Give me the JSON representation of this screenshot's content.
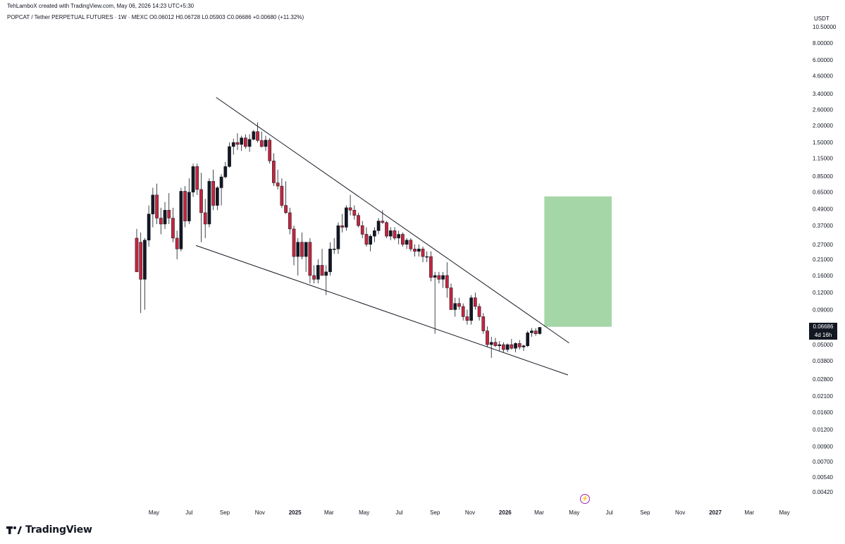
{
  "header": {
    "credit": "TehLamboX created with TradingView.com, May 06, 2026 14:23 UTC+5:30",
    "legend": "POPCAT / Tether PERPETUAL FUTURES · 1W · MEXC  O0.06012  H0.06728  L0.05903  C0.06686  +0.00680 (+11.32%)",
    "currency": "USDT"
  },
  "price_tag": {
    "price": "0.06686",
    "countdown": "4d 16h"
  },
  "brand": {
    "name": "TradingView",
    "logo_icon": "tradingview-logo-icon"
  },
  "event_icon": "lightning-icon",
  "colors": {
    "up": "#131722",
    "down": "#c2263e",
    "line": "#131722",
    "target_box": "#a5d6a7",
    "axis_text": "#131722"
  },
  "chart_data": {
    "type": "candlestick",
    "title": "POPCAT / Tether PERPETUAL FUTURES · 1W · MEXC",
    "y_scale": "log",
    "ylim": [
      0.0042,
      10.5
    ],
    "y_ticks": [
      "10.50000",
      "8.00000",
      "6.00000",
      "4.60000",
      "3.40000",
      "2.60000",
      "2.00000",
      "1.50000",
      "1.15000",
      "0.85000",
      "0.65000",
      "0.49000",
      "0.37000",
      "0.27000",
      "0.21000",
      "0.16000",
      "0.12000",
      "0.09000",
      "0.05000",
      "0.03800",
      "0.02800",
      "0.02100",
      "0.01600",
      "0.01200",
      "0.00900",
      "0.00700",
      "0.00540",
      "0.00420"
    ],
    "x_labels": [
      {
        "label": "May",
        "date": "2024-05-01",
        "bold": false
      },
      {
        "label": "Jul",
        "date": "2024-07-01",
        "bold": false
      },
      {
        "label": "Sep",
        "date": "2024-09-01",
        "bold": false
      },
      {
        "label": "Nov",
        "date": "2024-11-01",
        "bold": false
      },
      {
        "label": "2025",
        "date": "2025-01-01",
        "bold": true
      },
      {
        "label": "Mar",
        "date": "2025-03-01",
        "bold": false
      },
      {
        "label": "May",
        "date": "2025-05-01",
        "bold": false
      },
      {
        "label": "Jul",
        "date": "2025-07-01",
        "bold": false
      },
      {
        "label": "Sep",
        "date": "2025-09-01",
        "bold": false
      },
      {
        "label": "Nov",
        "date": "2025-11-01",
        "bold": false
      },
      {
        "label": "2026",
        "date": "2026-01-01",
        "bold": true
      },
      {
        "label": "Mar",
        "date": "2026-03-01",
        "bold": false
      },
      {
        "label": "May",
        "date": "2026-05-01",
        "bold": false
      },
      {
        "label": "Jul",
        "date": "2026-07-01",
        "bold": false
      },
      {
        "label": "Sep",
        "date": "2026-09-01",
        "bold": false
      },
      {
        "label": "Nov",
        "date": "2026-11-01",
        "bold": false
      },
      {
        "label": "2027",
        "date": "2027-01-01",
        "bold": true
      },
      {
        "label": "Mar",
        "date": "2027-03-01",
        "bold": false
      },
      {
        "label": "May",
        "date": "2027-05-01",
        "bold": false
      }
    ],
    "xlim": [
      "2024-03-21",
      "2027-06-03"
    ],
    "candles": [
      {
        "date": "2024-04-01",
        "o": 0.3,
        "h": 0.35,
        "l": 0.17,
        "c": 0.17
      },
      {
        "date": "2024-04-08",
        "o": 0.28,
        "h": 0.33,
        "l": 0.085,
        "c": 0.15
      },
      {
        "date": "2024-04-15",
        "o": 0.15,
        "h": 0.3,
        "l": 0.09,
        "c": 0.29
      },
      {
        "date": "2024-04-22",
        "o": 0.29,
        "h": 0.52,
        "l": 0.26,
        "c": 0.45
      },
      {
        "date": "2024-04-29",
        "o": 0.45,
        "h": 0.7,
        "l": 0.36,
        "c": 0.62
      },
      {
        "date": "2024-05-06",
        "o": 0.62,
        "h": 0.75,
        "l": 0.38,
        "c": 0.42
      },
      {
        "date": "2024-05-13",
        "o": 0.42,
        "h": 0.5,
        "l": 0.32,
        "c": 0.38
      },
      {
        "date": "2024-05-20",
        "o": 0.38,
        "h": 0.55,
        "l": 0.35,
        "c": 0.48
      },
      {
        "date": "2024-05-27",
        "o": 0.48,
        "h": 0.64,
        "l": 0.38,
        "c": 0.42
      },
      {
        "date": "2024-06-03",
        "o": 0.42,
        "h": 0.5,
        "l": 0.28,
        "c": 0.3
      },
      {
        "date": "2024-06-10",
        "o": 0.3,
        "h": 0.34,
        "l": 0.21,
        "c": 0.25
      },
      {
        "date": "2024-06-17",
        "o": 0.25,
        "h": 0.7,
        "l": 0.24,
        "c": 0.66
      },
      {
        "date": "2024-06-24",
        "o": 0.66,
        "h": 0.72,
        "l": 0.36,
        "c": 0.4
      },
      {
        "date": "2024-07-01",
        "o": 0.4,
        "h": 0.82,
        "l": 0.38,
        "c": 0.65
      },
      {
        "date": "2024-07-08",
        "o": 0.65,
        "h": 1.05,
        "l": 0.6,
        "c": 1.0
      },
      {
        "date": "2024-07-15",
        "o": 1.0,
        "h": 1.05,
        "l": 0.62,
        "c": 0.68
      },
      {
        "date": "2024-07-22",
        "o": 0.68,
        "h": 0.9,
        "l": 0.28,
        "c": 0.46
      },
      {
        "date": "2024-07-29",
        "o": 0.46,
        "h": 0.58,
        "l": 0.3,
        "c": 0.38
      },
      {
        "date": "2024-08-05",
        "o": 0.38,
        "h": 0.82,
        "l": 0.36,
        "c": 0.78
      },
      {
        "date": "2024-08-12",
        "o": 0.78,
        "h": 0.95,
        "l": 0.48,
        "c": 0.52
      },
      {
        "date": "2024-08-19",
        "o": 0.52,
        "h": 0.72,
        "l": 0.48,
        "c": 0.7
      },
      {
        "date": "2024-08-26",
        "o": 0.7,
        "h": 0.88,
        "l": 0.52,
        "c": 0.84
      },
      {
        "date": "2024-09-02",
        "o": 0.84,
        "h": 1.08,
        "l": 0.82,
        "c": 1.0
      },
      {
        "date": "2024-09-09",
        "o": 1.0,
        "h": 1.5,
        "l": 0.98,
        "c": 1.4
      },
      {
        "date": "2024-09-16",
        "o": 1.4,
        "h": 1.6,
        "l": 1.22,
        "c": 1.5
      },
      {
        "date": "2024-09-23",
        "o": 1.5,
        "h": 1.75,
        "l": 1.32,
        "c": 1.45
      },
      {
        "date": "2024-09-30",
        "o": 1.45,
        "h": 1.68,
        "l": 1.3,
        "c": 1.62
      },
      {
        "date": "2024-10-07",
        "o": 1.62,
        "h": 1.72,
        "l": 1.35,
        "c": 1.4
      },
      {
        "date": "2024-10-14",
        "o": 1.4,
        "h": 1.72,
        "l": 1.28,
        "c": 1.58
      },
      {
        "date": "2024-10-21",
        "o": 1.58,
        "h": 1.85,
        "l": 1.55,
        "c": 1.8
      },
      {
        "date": "2024-10-28",
        "o": 1.8,
        "h": 2.1,
        "l": 1.5,
        "c": 1.55
      },
      {
        "date": "2024-11-04",
        "o": 1.55,
        "h": 1.8,
        "l": 1.38,
        "c": 1.4
      },
      {
        "date": "2024-11-11",
        "o": 1.4,
        "h": 1.68,
        "l": 1.3,
        "c": 1.56
      },
      {
        "date": "2024-11-18",
        "o": 1.56,
        "h": 1.62,
        "l": 1.05,
        "c": 1.1
      },
      {
        "date": "2024-11-25",
        "o": 1.1,
        "h": 1.25,
        "l": 0.72,
        "c": 0.76
      },
      {
        "date": "2024-12-02",
        "o": 0.76,
        "h": 0.95,
        "l": 0.68,
        "c": 0.72
      },
      {
        "date": "2024-12-09",
        "o": 0.72,
        "h": 0.82,
        "l": 0.5,
        "c": 0.52
      },
      {
        "date": "2024-12-16",
        "o": 0.52,
        "h": 0.78,
        "l": 0.45,
        "c": 0.46
      },
      {
        "date": "2024-12-23",
        "o": 0.46,
        "h": 0.5,
        "l": 0.32,
        "c": 0.35
      },
      {
        "date": "2024-12-30",
        "o": 0.35,
        "h": 0.37,
        "l": 0.19,
        "c": 0.22
      },
      {
        "date": "2025-01-06",
        "o": 0.22,
        "h": 0.3,
        "l": 0.16,
        "c": 0.28
      },
      {
        "date": "2025-01-13",
        "o": 0.28,
        "h": 0.33,
        "l": 0.21,
        "c": 0.22
      },
      {
        "date": "2025-01-20",
        "o": 0.22,
        "h": 0.28,
        "l": 0.17,
        "c": 0.28
      },
      {
        "date": "2025-01-27",
        "o": 0.28,
        "h": 0.3,
        "l": 0.14,
        "c": 0.16
      },
      {
        "date": "2025-02-03",
        "o": 0.16,
        "h": 0.19,
        "l": 0.14,
        "c": 0.15
      },
      {
        "date": "2025-02-10",
        "o": 0.15,
        "h": 0.21,
        "l": 0.14,
        "c": 0.19
      },
      {
        "date": "2025-02-17",
        "o": 0.19,
        "h": 0.25,
        "l": 0.16,
        "c": 0.16
      },
      {
        "date": "2025-02-24",
        "o": 0.16,
        "h": 0.19,
        "l": 0.115,
        "c": 0.17
      },
      {
        "date": "2025-03-03",
        "o": 0.17,
        "h": 0.28,
        "l": 0.16,
        "c": 0.25
      },
      {
        "date": "2025-03-10",
        "o": 0.25,
        "h": 0.3,
        "l": 0.23,
        "c": 0.25
      },
      {
        "date": "2025-03-17",
        "o": 0.25,
        "h": 0.39,
        "l": 0.23,
        "c": 0.37
      },
      {
        "date": "2025-03-24",
        "o": 0.37,
        "h": 0.45,
        "l": 0.33,
        "c": 0.36
      },
      {
        "date": "2025-03-31",
        "o": 0.36,
        "h": 0.52,
        "l": 0.34,
        "c": 0.5
      },
      {
        "date": "2025-04-07",
        "o": 0.5,
        "h": 0.62,
        "l": 0.44,
        "c": 0.48
      },
      {
        "date": "2025-04-14",
        "o": 0.48,
        "h": 0.52,
        "l": 0.41,
        "c": 0.44
      },
      {
        "date": "2025-04-21",
        "o": 0.44,
        "h": 0.46,
        "l": 0.36,
        "c": 0.37
      },
      {
        "date": "2025-04-28",
        "o": 0.37,
        "h": 0.4,
        "l": 0.3,
        "c": 0.32
      },
      {
        "date": "2025-05-05",
        "o": 0.32,
        "h": 0.36,
        "l": 0.26,
        "c": 0.27
      },
      {
        "date": "2025-05-12",
        "o": 0.27,
        "h": 0.32,
        "l": 0.24,
        "c": 0.31
      },
      {
        "date": "2025-05-19",
        "o": 0.31,
        "h": 0.36,
        "l": 0.28,
        "c": 0.34
      },
      {
        "date": "2025-05-26",
        "o": 0.34,
        "h": 0.42,
        "l": 0.32,
        "c": 0.4
      },
      {
        "date": "2025-06-02",
        "o": 0.4,
        "h": 0.48,
        "l": 0.38,
        "c": 0.39
      },
      {
        "date": "2025-06-09",
        "o": 0.39,
        "h": 0.4,
        "l": 0.3,
        "c": 0.31
      },
      {
        "date": "2025-06-16",
        "o": 0.31,
        "h": 0.36,
        "l": 0.29,
        "c": 0.34
      },
      {
        "date": "2025-06-23",
        "o": 0.34,
        "h": 0.36,
        "l": 0.29,
        "c": 0.3
      },
      {
        "date": "2025-06-30",
        "o": 0.3,
        "h": 0.34,
        "l": 0.27,
        "c": 0.32
      },
      {
        "date": "2025-07-07",
        "o": 0.32,
        "h": 0.33,
        "l": 0.26,
        "c": 0.27
      },
      {
        "date": "2025-07-14",
        "o": 0.27,
        "h": 0.3,
        "l": 0.25,
        "c": 0.29
      },
      {
        "date": "2025-07-21",
        "o": 0.29,
        "h": 0.3,
        "l": 0.24,
        "c": 0.25
      },
      {
        "date": "2025-07-28",
        "o": 0.25,
        "h": 0.27,
        "l": 0.22,
        "c": 0.24
      },
      {
        "date": "2025-08-04",
        "o": 0.24,
        "h": 0.27,
        "l": 0.22,
        "c": 0.25
      },
      {
        "date": "2025-08-11",
        "o": 0.25,
        "h": 0.26,
        "l": 0.2,
        "c": 0.22
      },
      {
        "date": "2025-08-18",
        "o": 0.22,
        "h": 0.24,
        "l": 0.2,
        "c": 0.22
      },
      {
        "date": "2025-08-25",
        "o": 0.22,
        "h": 0.24,
        "l": 0.145,
        "c": 0.155
      },
      {
        "date": "2025-09-01",
        "o": 0.155,
        "h": 0.17,
        "l": 0.06,
        "c": 0.16
      },
      {
        "date": "2025-09-08",
        "o": 0.16,
        "h": 0.17,
        "l": 0.14,
        "c": 0.15
      },
      {
        "date": "2025-09-15",
        "o": 0.15,
        "h": 0.17,
        "l": 0.13,
        "c": 0.16
      },
      {
        "date": "2025-09-22",
        "o": 0.16,
        "h": 0.2,
        "l": 0.11,
        "c": 0.13
      },
      {
        "date": "2025-09-29",
        "o": 0.13,
        "h": 0.14,
        "l": 0.09,
        "c": 0.09
      },
      {
        "date": "2025-10-06",
        "o": 0.09,
        "h": 0.11,
        "l": 0.08,
        "c": 0.1
      },
      {
        "date": "2025-10-13",
        "o": 0.1,
        "h": 0.11,
        "l": 0.09,
        "c": 0.095
      },
      {
        "date": "2025-10-20",
        "o": 0.095,
        "h": 0.1,
        "l": 0.075,
        "c": 0.08
      },
      {
        "date": "2025-10-27",
        "o": 0.08,
        "h": 0.09,
        "l": 0.07,
        "c": 0.075
      },
      {
        "date": "2025-11-03",
        "o": 0.075,
        "h": 0.115,
        "l": 0.07,
        "c": 0.11
      },
      {
        "date": "2025-11-10",
        "o": 0.11,
        "h": 0.12,
        "l": 0.09,
        "c": 0.095
      },
      {
        "date": "2025-11-17",
        "o": 0.095,
        "h": 0.1,
        "l": 0.075,
        "c": 0.08
      },
      {
        "date": "2025-11-24",
        "o": 0.08,
        "h": 0.085,
        "l": 0.06,
        "c": 0.063
      },
      {
        "date": "2025-12-01",
        "o": 0.063,
        "h": 0.068,
        "l": 0.048,
        "c": 0.05
      },
      {
        "date": "2025-12-08",
        "o": 0.05,
        "h": 0.057,
        "l": 0.04,
        "c": 0.052
      },
      {
        "date": "2025-12-15",
        "o": 0.052,
        "h": 0.056,
        "l": 0.048,
        "c": 0.049
      },
      {
        "date": "2025-12-22",
        "o": 0.049,
        "h": 0.053,
        "l": 0.045,
        "c": 0.05
      },
      {
        "date": "2025-12-29",
        "o": 0.05,
        "h": 0.052,
        "l": 0.044,
        "c": 0.046
      },
      {
        "date": "2026-01-05",
        "o": 0.046,
        "h": 0.051,
        "l": 0.044,
        "c": 0.05
      },
      {
        "date": "2026-01-12",
        "o": 0.05,
        "h": 0.055,
        "l": 0.046,
        "c": 0.047
      },
      {
        "date": "2026-01-19",
        "o": 0.047,
        "h": 0.052,
        "l": 0.044,
        "c": 0.051
      },
      {
        "date": "2026-01-26",
        "o": 0.051,
        "h": 0.054,
        "l": 0.046,
        "c": 0.048
      },
      {
        "date": "2026-02-02",
        "o": 0.048,
        "h": 0.05,
        "l": 0.045,
        "c": 0.049
      },
      {
        "date": "2026-02-09",
        "o": 0.049,
        "h": 0.063,
        "l": 0.048,
        "c": 0.061
      },
      {
        "date": "2026-02-16",
        "o": 0.061,
        "h": 0.066,
        "l": 0.057,
        "c": 0.063
      },
      {
        "date": "2026-02-23",
        "o": 0.063,
        "h": 0.066,
        "l": 0.058,
        "c": 0.06
      },
      {
        "date": "2026-03-02",
        "o": 0.06012,
        "h": 0.06728,
        "l": 0.05903,
        "c": 0.06686
      }
    ],
    "trendlines": [
      {
        "name": "upper",
        "start": {
          "date": "2024-08-17",
          "value": 3.2
        },
        "end": {
          "date": "2026-04-22",
          "value": 0.0514
        }
      },
      {
        "name": "lower",
        "start": {
          "date": "2024-07-13",
          "value": 0.265
        },
        "end": {
          "date": "2026-04-20",
          "value": 0.03
        }
      }
    ],
    "target_zone": {
      "date_start": "2026-03-10",
      "date_end": "2026-07-05",
      "top": 0.605,
      "bottom": 0.0675
    },
    "last_price": 0.06686,
    "grid": false
  }
}
